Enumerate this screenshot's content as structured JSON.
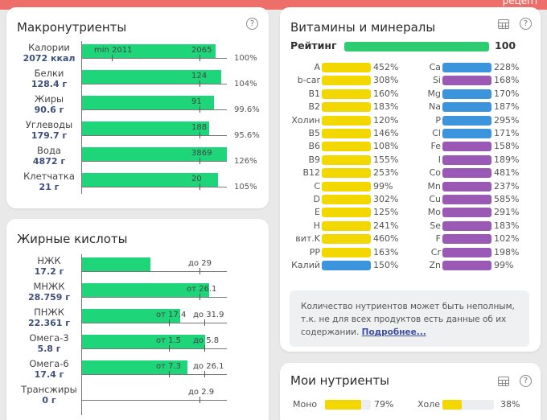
{
  "topbar": {
    "label": "рецепт",
    "color": "#ee6f6a"
  },
  "macro": {
    "title": "Макронутриенты",
    "rows": [
      {
        "name": "Калории",
        "amount": "2072 ккал",
        "fill": 0.92,
        "min_label": "min 2011",
        "target_label": "2065",
        "percent": "100%"
      },
      {
        "name": "Белки",
        "amount": "128.4 г",
        "fill": 0.96,
        "target_label": "124",
        "percent": "104%"
      },
      {
        "name": "Жиры",
        "amount": "90.6 г",
        "fill": 0.91,
        "target_label": "91",
        "percent": "99.6%"
      },
      {
        "name": "Углеводы",
        "amount": "179.7 г",
        "fill": 0.88,
        "target_label": "188",
        "percent": "95.6%"
      },
      {
        "name": "Вода",
        "amount": "4872 г",
        "fill": 1.0,
        "target_label": "3869",
        "percent": "126%"
      },
      {
        "name": "Клетчатка",
        "amount": "21 г",
        "fill": 0.94,
        "target_label": "20",
        "percent": "105%"
      }
    ]
  },
  "fats": {
    "title": "Жирные кислоты",
    "rows": [
      {
        "name": "НЖК",
        "amount": "17.2 г",
        "fill": 0.47,
        "from_label": "",
        "to_label": "до 29"
      },
      {
        "name": "МНЖК",
        "amount": "28.759 г",
        "fill": 0.88,
        "from_label": "от 26.1",
        "to_label": ""
      },
      {
        "name": "ПНЖК",
        "amount": "22.361 г",
        "fill": 0.68,
        "from_label": "от 17.4",
        "to_label": "до 31.9"
      },
      {
        "name": "Омега-3",
        "amount": "5.8 г",
        "fill": 0.85,
        "from_label": "от 1.5",
        "to_label": "до 5.8"
      },
      {
        "name": "Омега-6",
        "amount": "17.4 г",
        "fill": 0.73,
        "from_label": "от 7.3",
        "to_label": "до 26.1"
      },
      {
        "name": "Трансжиры",
        "amount": "0 г",
        "fill": 0,
        "from_label": "",
        "to_label": "до 2.9"
      }
    ]
  },
  "vitamins": {
    "title": "Витамины и минералы",
    "rating_label": "Рейтинг",
    "rating_value": "100",
    "rating_color": "#2ecc71",
    "colors": {
      "vitamin": "#f3d800",
      "macro": "#3b94dc",
      "micro": "#9b59b6"
    },
    "left": [
      {
        "name": "A",
        "pct": "452%",
        "type": "vitamin"
      },
      {
        "name": "b-car",
        "pct": "308%",
        "type": "vitamin"
      },
      {
        "name": "B1",
        "pct": "160%",
        "type": "vitamin"
      },
      {
        "name": "B2",
        "pct": "183%",
        "type": "vitamin"
      },
      {
        "name": "Холин",
        "pct": "120%",
        "type": "vitamin"
      },
      {
        "name": "B5",
        "pct": "146%",
        "type": "vitamin"
      },
      {
        "name": "B6",
        "pct": "108%",
        "type": "vitamin"
      },
      {
        "name": "B9",
        "pct": "155%",
        "type": "vitamin"
      },
      {
        "name": "B12",
        "pct": "253%",
        "type": "vitamin"
      },
      {
        "name": "C",
        "pct": "99%",
        "type": "vitamin"
      },
      {
        "name": "D",
        "pct": "302%",
        "type": "vitamin"
      },
      {
        "name": "E",
        "pct": "125%",
        "type": "vitamin"
      },
      {
        "name": "H",
        "pct": "241%",
        "type": "vitamin"
      },
      {
        "name": "вит.K",
        "pct": "460%",
        "type": "vitamin"
      },
      {
        "name": "PP",
        "pct": "163%",
        "type": "vitamin"
      },
      {
        "name": "Калий",
        "pct": "150%",
        "type": "macro"
      }
    ],
    "right": [
      {
        "name": "Ca",
        "pct": "228%",
        "type": "macro"
      },
      {
        "name": "Si",
        "pct": "168%",
        "type": "micro"
      },
      {
        "name": "Mg",
        "pct": "170%",
        "type": "macro"
      },
      {
        "name": "Na",
        "pct": "187%",
        "type": "macro"
      },
      {
        "name": "P",
        "pct": "295%",
        "type": "macro"
      },
      {
        "name": "Cl",
        "pct": "171%",
        "type": "macro"
      },
      {
        "name": "Fe",
        "pct": "158%",
        "type": "micro"
      },
      {
        "name": "I",
        "pct": "189%",
        "type": "micro"
      },
      {
        "name": "Co",
        "pct": "481%",
        "type": "micro"
      },
      {
        "name": "Mn",
        "pct": "237%",
        "type": "micro"
      },
      {
        "name": "Cu",
        "pct": "585%",
        "type": "micro"
      },
      {
        "name": "Mo",
        "pct": "291%",
        "type": "micro"
      },
      {
        "name": "Se",
        "pct": "183%",
        "type": "micro"
      },
      {
        "name": "F",
        "pct": "102%",
        "type": "micro"
      },
      {
        "name": "Cr",
        "pct": "198%",
        "type": "micro"
      },
      {
        "name": "Zn",
        "pct": "99%",
        "type": "micro"
      }
    ],
    "notice_text": "Количество нутриентов может быть неполным, т.к. не для всех продуктов есть данные об их содержании.",
    "notice_link": "Подробнее..."
  },
  "my_nutrients": {
    "title": "Мои нутриенты",
    "items": [
      {
        "name": "Моно",
        "pct": "79%",
        "fill": 0.79
      },
      {
        "name": "Холе",
        "pct": "38%",
        "fill": 0.38
      }
    ]
  }
}
